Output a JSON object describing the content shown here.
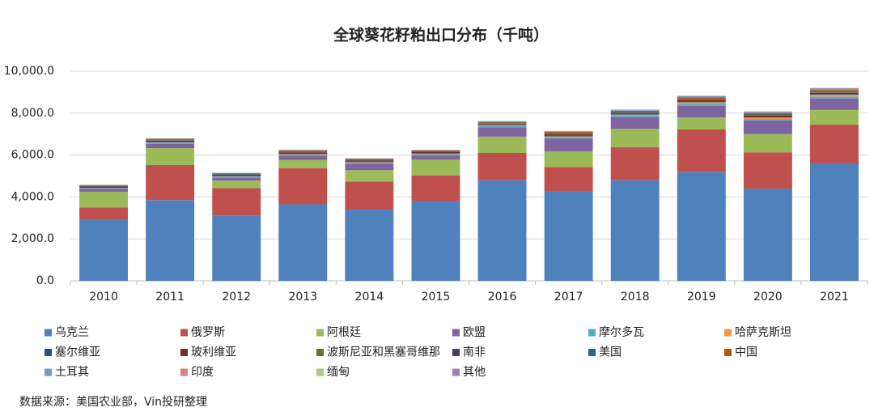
{
  "chart_data": {
    "type": "stacked-bar",
    "title": "全球葵花籽粕出口分布（千吨）",
    "source": "数据来源：美国农业部，Vin投研整理",
    "categories": [
      "2010",
      "2011",
      "2012",
      "2013",
      "2014",
      "2015",
      "2016",
      "2017",
      "2018",
      "2019",
      "2020",
      "2021"
    ],
    "ylim": [
      0,
      10000
    ],
    "yticks": [
      {
        "value": 0,
        "label": "0.0"
      },
      {
        "value": 2000,
        "label": "2,000.0"
      },
      {
        "value": 4000,
        "label": "4,000.0"
      },
      {
        "value": 6000,
        "label": "6,000.0"
      },
      {
        "value": 8000,
        "label": "8,000.0"
      },
      {
        "value": 10000,
        "label": "10,000.0"
      }
    ],
    "grid": true,
    "legend": "bottom",
    "series": [
      {
        "name": "乌克兰",
        "color": "#4f81bd",
        "values": [
          2900,
          3850,
          3100,
          3650,
          3400,
          3800,
          4800,
          4250,
          4800,
          5200,
          4400,
          5600
        ]
      },
      {
        "name": "俄罗斯",
        "color": "#c0504d",
        "values": [
          600,
          1670,
          1320,
          1730,
          1330,
          1220,
          1300,
          1180,
          1580,
          2020,
          1730,
          1850
        ]
      },
      {
        "name": "阿根廷",
        "color": "#9bbb59",
        "values": [
          750,
          810,
          360,
          390,
          550,
          760,
          780,
          750,
          870,
          580,
          870,
          700
        ]
      },
      {
        "name": "欧盟",
        "color": "#8064a2",
        "values": [
          150,
          200,
          150,
          200,
          300,
          200,
          450,
          600,
          550,
          550,
          650,
          550
        ]
      },
      {
        "name": "摩尔多瓦",
        "color": "#4bacc6",
        "values": [
          30,
          60,
          40,
          50,
          50,
          60,
          60,
          60,
          70,
          90,
          70,
          90
        ]
      },
      {
        "name": "哈萨克斯坦",
        "color": "#f79646",
        "values": [
          10,
          20,
          20,
          30,
          30,
          30,
          40,
          50,
          60,
          80,
          70,
          90
        ]
      },
      {
        "name": "塞尔维亚",
        "color": "#2c4d75",
        "values": [
          20,
          30,
          30,
          30,
          30,
          30,
          30,
          30,
          30,
          30,
          30,
          30
        ]
      },
      {
        "name": "玻利维亚",
        "color": "#772c2a",
        "values": [
          40,
          50,
          40,
          50,
          50,
          40,
          40,
          70,
          50,
          60,
          60,
          60
        ]
      },
      {
        "name": "波斯尼亚和黑塞哥维那",
        "color": "#5f7530",
        "values": [
          5,
          5,
          5,
          5,
          5,
          5,
          5,
          5,
          5,
          5,
          5,
          5
        ]
      },
      {
        "name": "南非",
        "color": "#4d3b62",
        "values": [
          10,
          10,
          10,
          10,
          10,
          10,
          10,
          10,
          10,
          10,
          10,
          10
        ]
      },
      {
        "name": "美国",
        "color": "#276a7c",
        "values": [
          30,
          40,
          30,
          40,
          40,
          40,
          40,
          50,
          40,
          40,
          40,
          40
        ]
      },
      {
        "name": "中国",
        "color": "#b65708",
        "values": [
          20,
          30,
          30,
          40,
          30,
          30,
          40,
          60,
          50,
          80,
          70,
          80
        ]
      },
      {
        "name": "土耳其",
        "color": "#729aca",
        "values": [
          5,
          10,
          5,
          20,
          10,
          10,
          10,
          20,
          30,
          60,
          50,
          60
        ]
      },
      {
        "name": "印度",
        "color": "#d9807e",
        "values": [
          2,
          2,
          2,
          2,
          2,
          2,
          2,
          2,
          2,
          2,
          2,
          2
        ]
      },
      {
        "name": "缅甸",
        "color": "#afc97a",
        "values": [
          2,
          2,
          2,
          2,
          2,
          2,
          2,
          2,
          2,
          2,
          2,
          2
        ]
      },
      {
        "name": "其他",
        "color": "#9983b5",
        "values": [
          8,
          10,
          10,
          10,
          10,
          10,
          10,
          10,
          20,
          20,
          20,
          30
        ]
      }
    ]
  }
}
